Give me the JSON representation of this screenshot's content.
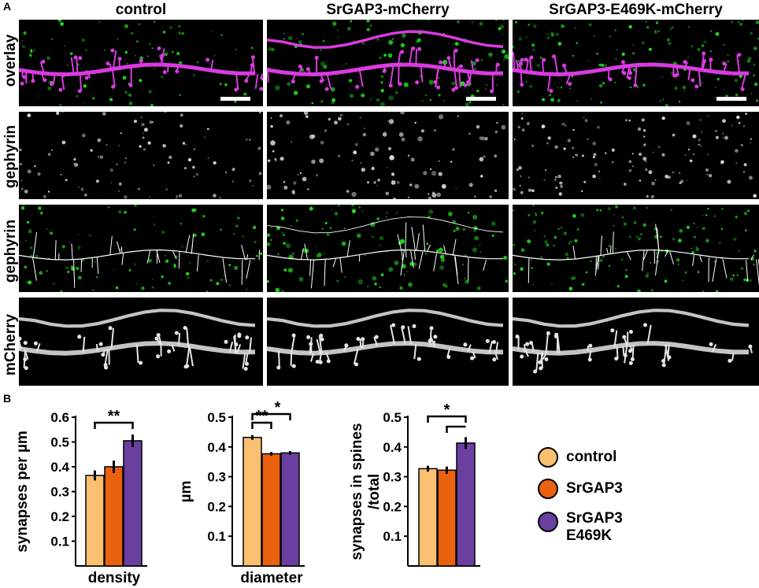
{
  "panel_a": {
    "letter": "A",
    "columns": [
      "control",
      "SrGAP3-mCherry",
      "SrGAP3-E469K-mCherry"
    ],
    "rows": [
      "overlay",
      "gephyrin",
      "gephyrin",
      "mCherry"
    ]
  },
  "panel_b": {
    "letter": "B"
  },
  "colors": {
    "control": "#fbbf72",
    "srgap3": "#e8620f",
    "e469k": "#6a3fa0",
    "magenta": "#d93be0",
    "green": "#22dd22"
  },
  "legend": [
    {
      "label": "control",
      "color": "#fbbf72"
    },
    {
      "label": "SrGAP3",
      "color": "#e8620f"
    },
    {
      "label": "SrGAP3\nE469K",
      "color": "#6a3fa0"
    }
  ],
  "chart_data": [
    {
      "type": "bar",
      "categories": [
        "control",
        "SrGAP3",
        "SrGAP3 E469K"
      ],
      "values": [
        0.365,
        0.4,
        0.505
      ],
      "errors": [
        0.02,
        0.025,
        0.025
      ],
      "xlabel": "density",
      "ylabel": "synapses per µm",
      "ylim": [
        0,
        0.6
      ],
      "yticks": [
        0.1,
        0.2,
        0.3,
        0.4,
        0.5,
        0.6
      ],
      "significance": [
        {
          "from": 0,
          "to": 2,
          "label": "**"
        }
      ]
    },
    {
      "type": "bar",
      "categories": [
        "control",
        "SrGAP3",
        "SrGAP3 E469K"
      ],
      "values": [
        0.432,
        0.377,
        0.38
      ],
      "errors": [
        0.008,
        0.006,
        0.006
      ],
      "xlabel": "diameter",
      "ylabel": "µm",
      "ylim": [
        0,
        0.5
      ],
      "yticks": [
        0.1,
        0.2,
        0.3,
        0.4,
        0.5
      ],
      "significance": [
        {
          "from": 0,
          "to": 1,
          "label": "**"
        },
        {
          "from": 0,
          "to": 2,
          "label": "*"
        }
      ]
    },
    {
      "type": "bar",
      "categories": [
        "control",
        "SrGAP3",
        "SrGAP3 E469K"
      ],
      "values": [
        0.327,
        0.322,
        0.413
      ],
      "errors": [
        0.01,
        0.012,
        0.02
      ],
      "xlabel": "",
      "ylabel": "synapses in spines\n/total",
      "ylim": [
        0,
        0.5
      ],
      "yticks": [
        0.1,
        0.2,
        0.3,
        0.4,
        0.5
      ],
      "significance": [
        {
          "from": 0,
          "to": 2,
          "label": "*"
        },
        {
          "from": 1,
          "to": 2,
          "label": ""
        }
      ]
    }
  ]
}
